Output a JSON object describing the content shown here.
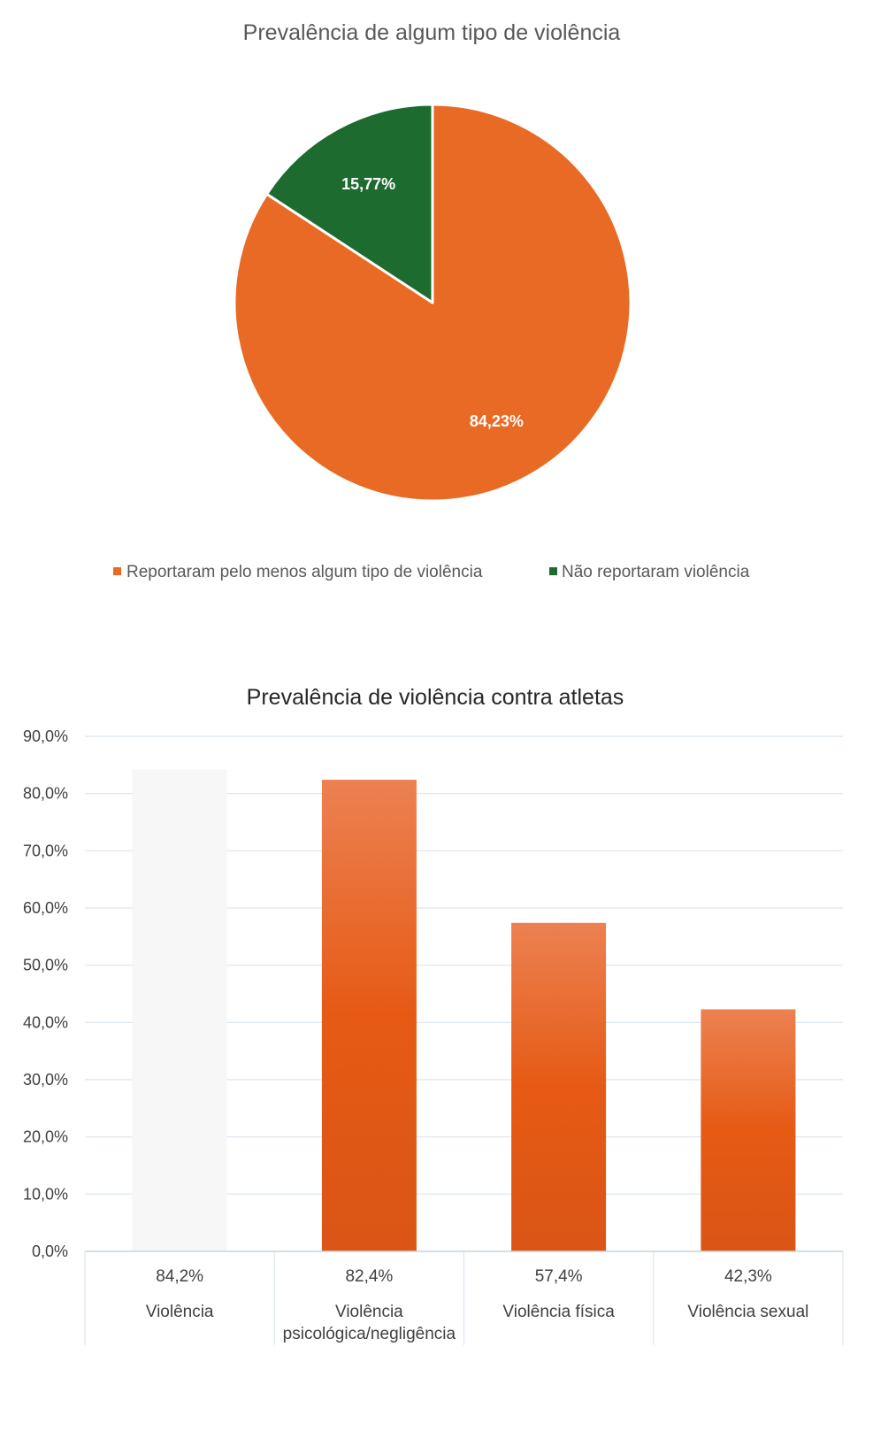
{
  "chart_data": [
    {
      "type": "pie",
      "title": "Prevalência de algum tipo de violência",
      "slices": [
        {
          "name": "Reportaram pelo menos algum tipo de violência",
          "value": 84.23,
          "label": "84,23%",
          "color": "#E96A25"
        },
        {
          "name": "Não reportaram violência",
          "value": 15.77,
          "label": "15,77%",
          "color": "#1E6B30"
        }
      ],
      "legend_position": "bottom"
    },
    {
      "type": "bar",
      "title": "Prevalência de violência contra atletas",
      "categories": [
        "Violência",
        "Violência psicológica/negligência",
        "Violência física",
        "Violência sexual"
      ],
      "category_lines": [
        [
          "Violência"
        ],
        [
          "Violência",
          "psicológica/negligência"
        ],
        [
          "Violência física"
        ],
        [
          "Violência sexual"
        ]
      ],
      "values": [
        84.2,
        82.4,
        57.4,
        42.3
      ],
      "value_labels": [
        "84,2%",
        "82,4%",
        "57,4%",
        "42,3%"
      ],
      "ylim": [
        0,
        90
      ],
      "yticks": [
        0,
        10,
        20,
        30,
        40,
        50,
        60,
        70,
        80,
        90
      ],
      "ytick_labels": [
        "0,0%",
        "10,0%",
        "20,0%",
        "30,0%",
        "40,0%",
        "50,0%",
        "60,0%",
        "70,0%",
        "80,0%",
        "90,0%"
      ],
      "grid": true,
      "data_table": true,
      "bar_colors": [
        "#F7F7F7",
        "#E8621E",
        "#E8621E",
        "#E8621E"
      ]
    }
  ]
}
